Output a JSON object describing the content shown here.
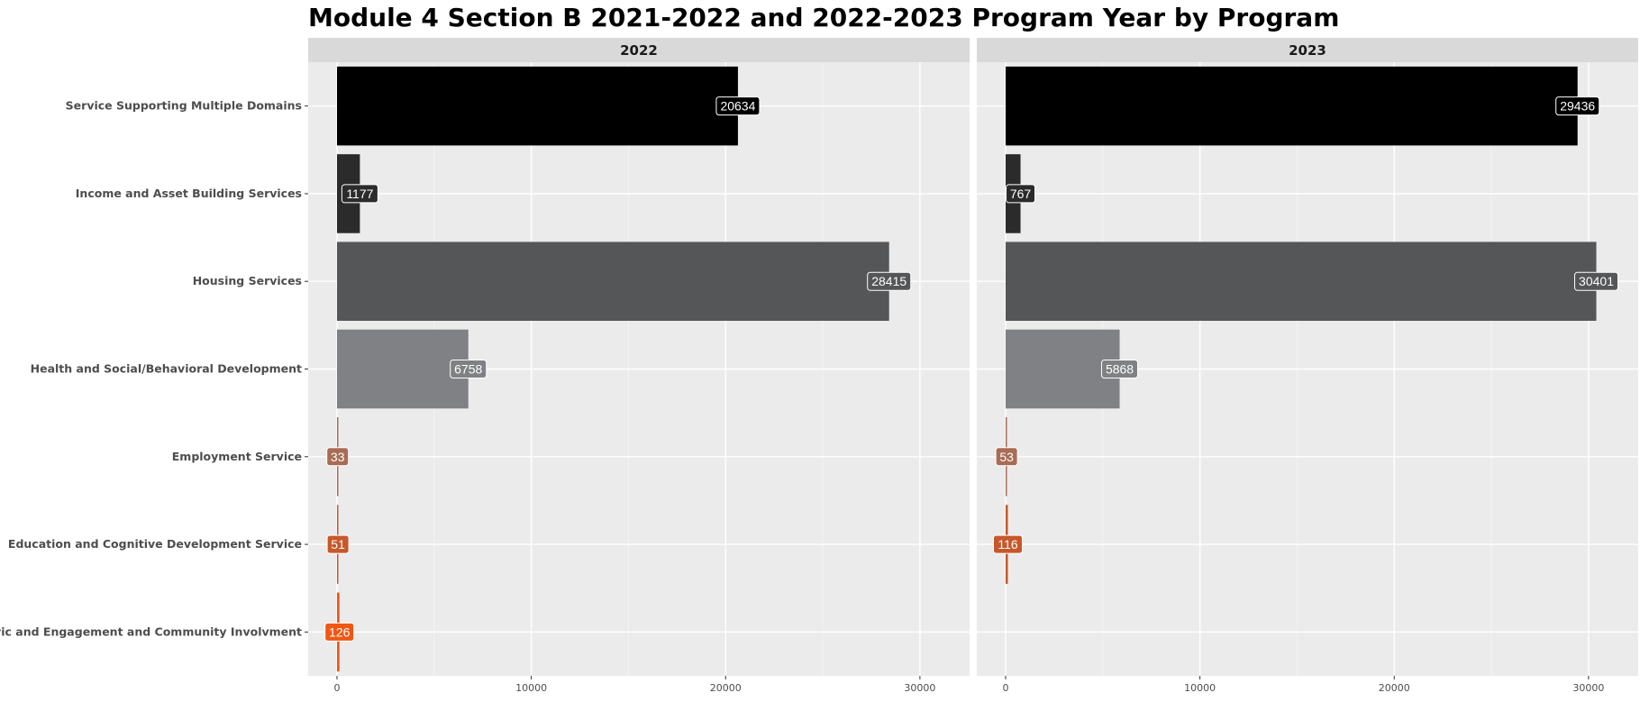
{
  "chart_data": {
    "type": "bar",
    "orientation": "horizontal",
    "title": "Module 4 Section B 2021-2022 and 2022-2023 Program Year by Program",
    "xlabel": "",
    "ylabel": "",
    "xlim": [
      0,
      32000
    ],
    "x_ticks": [
      0,
      10000,
      20000,
      30000
    ],
    "grid": true,
    "legend": "none",
    "categories": [
      "Service Supporting Multiple Domains",
      "Income and Asset Building Services",
      "Housing Services",
      "Health and Social/Behavioral Development",
      "Employment Service",
      "Education and Cognitive Development Service",
      "Civic and Engagement and Community Involvment"
    ],
    "colors": [
      "#000000",
      "#2b2b2c",
      "#555657",
      "#808184",
      "#a86c55",
      "#c8572a",
      "#f05714"
    ],
    "panels": [
      {
        "name": "2022",
        "values": [
          20634,
          1177,
          28415,
          6758,
          33,
          51,
          126
        ]
      },
      {
        "name": "2023",
        "values": [
          29436,
          767,
          30401,
          5868,
          53,
          116,
          null
        ]
      }
    ]
  }
}
